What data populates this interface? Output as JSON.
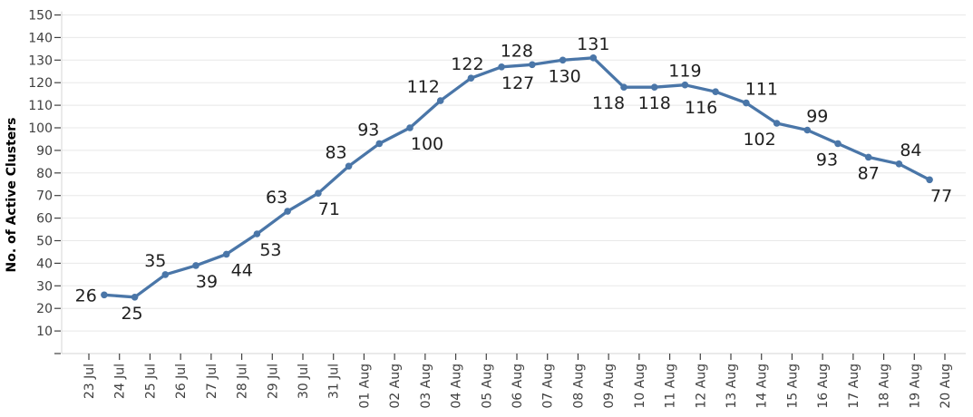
{
  "chart_data": {
    "type": "line",
    "title": "",
    "xlabel": "",
    "ylabel": "No. of Active Clusters",
    "ylim": [
      0,
      150
    ],
    "y_tick_step": 10,
    "y_tick_labels": [
      "10",
      "20",
      "30",
      "40",
      "50",
      "60",
      "70",
      "80",
      "90",
      "100",
      "110",
      "120",
      "130",
      "140",
      "150"
    ],
    "y_zero_tick_unlabeled": true,
    "x_tick_labels": [
      "23 Jul",
      "24 Jul",
      "25 Jul",
      "26 Jul",
      "27 Jul",
      "28 Jul",
      "29 Jul",
      "30 Jul",
      "31 Jul",
      "01 Aug",
      "02 Aug",
      "03 Aug",
      "04 Aug",
      "05 Aug",
      "06 Aug",
      "07 Aug",
      "08 Aug",
      "09 Aug",
      "10 Aug",
      "11 Aug",
      "12 Aug",
      "13 Aug",
      "14 Aug",
      "15 Aug",
      "16 Aug",
      "17 Aug",
      "18 Aug",
      "19 Aug",
      "20 Aug"
    ],
    "x_tick_labels_rotated_degrees": -90,
    "points_between_ticks": true,
    "grid": "horizontal",
    "legend": "none",
    "series": [
      {
        "name": "No. of Active Clusters",
        "points": [
          {
            "date": "23 Jul",
            "value": 26,
            "label_pos": "left",
            "label_dx": 0
          },
          {
            "date": "24 Jul",
            "value": 25,
            "label_pos": "below",
            "label_dx": -3
          },
          {
            "date": "25 Jul",
            "value": 35,
            "label_pos": "above",
            "label_dx": -11
          },
          {
            "date": "26 Jul",
            "value": 39,
            "label_pos": "below",
            "label_dx": 12
          },
          {
            "date": "27 Jul",
            "value": 44,
            "label_pos": "below",
            "label_dx": 17
          },
          {
            "date": "28 Jul",
            "value": 53,
            "label_pos": "below",
            "label_dx": 15
          },
          {
            "date": "29 Jul",
            "value": 63,
            "label_pos": "above",
            "label_dx": -12
          },
          {
            "date": "30 Jul",
            "value": 71,
            "label_pos": "below",
            "label_dx": 12
          },
          {
            "date": "31 Jul",
            "value": 83,
            "label_pos": "above",
            "label_dx": -14
          },
          {
            "date": "01 Aug",
            "value": 93,
            "label_pos": "above",
            "label_dx": -12
          },
          {
            "date": "02 Aug",
            "value": 100,
            "label_pos": "below",
            "label_dx": 19
          },
          {
            "date": "03 Aug",
            "value": 112,
            "label_pos": "above",
            "label_dx": -19
          },
          {
            "date": "04 Aug",
            "value": 122,
            "label_pos": "above",
            "label_dx": -4
          },
          {
            "date": "05 Aug",
            "value": 127,
            "label_pos": "below",
            "label_dx": 18
          },
          {
            "date": "06 Aug",
            "value": 128,
            "label_pos": "above",
            "label_dx": -17
          },
          {
            "date": "07 Aug",
            "value": 130,
            "label_pos": "below",
            "label_dx": 2
          },
          {
            "date": "08 Aug",
            "value": 131,
            "label_pos": "above",
            "label_dx": 0
          },
          {
            "date": "09 Aug",
            "value": 118,
            "label_pos": "below",
            "label_dx": -17
          },
          {
            "date": "10 Aug",
            "value": 118,
            "label_pos": "below",
            "label_dx": 0
          },
          {
            "date": "11 Aug",
            "value": 119,
            "label_pos": "above",
            "label_dx": 0
          },
          {
            "date": "12 Aug",
            "value": 116,
            "label_pos": "below",
            "label_dx": -16
          },
          {
            "date": "13 Aug",
            "value": 111,
            "label_pos": "above",
            "label_dx": 17
          },
          {
            "date": "14 Aug",
            "value": 102,
            "label_pos": "below",
            "label_dx": -19
          },
          {
            "date": "15 Aug",
            "value": 99,
            "label_pos": "above",
            "label_dx": 11
          },
          {
            "date": "16 Aug",
            "value": 93,
            "label_pos": "below",
            "label_dx": -12
          },
          {
            "date": "17 Aug",
            "value": 87,
            "label_pos": "below",
            "label_dx": 0
          },
          {
            "date": "18 Aug",
            "value": 84,
            "label_pos": "above",
            "label_dx": 13
          },
          {
            "date": "19 Aug",
            "value": 77,
            "label_pos": "below",
            "label_dx": 13
          }
        ]
      }
    ],
    "colors": {
      "line": "#4a76a8",
      "marker": "#4a76a8",
      "grid": "#e8e8e8",
      "axis_line": "#d6d6d6",
      "tick": "#404040",
      "axis_text": "#404040",
      "data_label": "#1f1f1f",
      "background": "#ffffff"
    }
  }
}
